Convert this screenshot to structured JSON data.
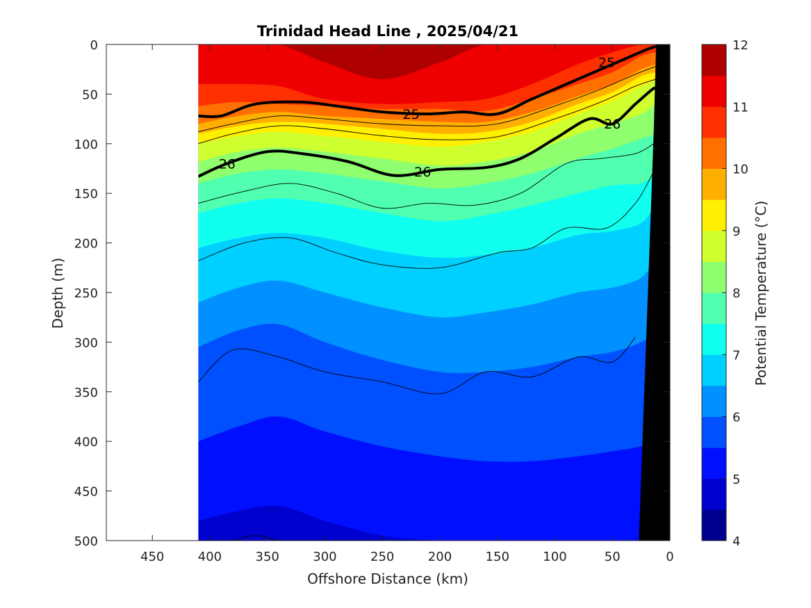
{
  "chart_data": {
    "type": "heatmap",
    "subtype": "filled-contour-section",
    "title": "Trinidad Head Line , 2025/04/21",
    "xlabel": "Offshore Distance (km)",
    "ylabel": "Depth (m)",
    "colorbar_label": "Potential Temperature (°C)",
    "x_reversed": true,
    "y_reversed": true,
    "xlim": [
      0,
      490
    ],
    "ylim": [
      0,
      500
    ],
    "xticks": [
      450,
      400,
      350,
      300,
      250,
      200,
      150,
      100,
      50,
      0
    ],
    "yticks": [
      0,
      50,
      100,
      150,
      200,
      250,
      300,
      350,
      400,
      450,
      500
    ],
    "colorbar": {
      "min": 4,
      "max": 12,
      "ticks": [
        4,
        5,
        6,
        7,
        8,
        9,
        10,
        11,
        12
      ],
      "levels": [
        4,
        4.5,
        5,
        5.5,
        6,
        6.5,
        7,
        7.5,
        8,
        8.5,
        9,
        9.5,
        10,
        10.5,
        11,
        11.5,
        12
      ],
      "colors": [
        "#00008f",
        "#0000cf",
        "#0010ff",
        "#0050ff",
        "#0090ff",
        "#00d0ff",
        "#10ffef",
        "#50ffaf",
        "#90ff6f",
        "#d0ff2f",
        "#ffef00",
        "#ffaf00",
        "#ff7000",
        "#ff3000",
        "#ef0000",
        "#af0000"
      ]
    },
    "data_range_km": [
      12,
      410
    ],
    "bathymetry_km_at_depth": [
      [
        12,
        0
      ],
      [
        14,
        85
      ],
      [
        27,
        500
      ]
    ],
    "temperature_surfaces": [
      {
        "t": 11.5,
        "depth": [
          0,
          0,
          0,
          18,
          35,
          18,
          0,
          0,
          0,
          0,
          0,
          0
        ]
      },
      {
        "t": 11.0,
        "depth": [
          40,
          40,
          42,
          55,
          60,
          58,
          55,
          40,
          20,
          8,
          0,
          0
        ]
      },
      {
        "t": 10.5,
        "depth": [
          62,
          58,
          60,
          62,
          65,
          65,
          67,
          55,
          40,
          28,
          12,
          8
        ]
      },
      {
        "t": 10.0,
        "depth": [
          80,
          72,
          68,
          72,
          75,
          78,
          78,
          68,
          52,
          40,
          25,
          20
        ]
      },
      {
        "t": 9.5,
        "depth": [
          90,
          82,
          78,
          80,
          85,
          90,
          88,
          78,
          60,
          48,
          32,
          28
        ]
      },
      {
        "t": 9.0,
        "depth": [
          100,
          92,
          88,
          92,
          98,
          103,
          98,
          88,
          70,
          57,
          42,
          36
        ]
      },
      {
        "t": 8.5,
        "depth": [
          118,
          108,
          104,
          108,
          115,
          122,
          118,
          108,
          90,
          80,
          70,
          60
        ]
      },
      {
        "t": 8.0,
        "depth": [
          140,
          130,
          126,
          130,
          138,
          145,
          140,
          130,
          115,
          105,
          95,
          90
        ]
      },
      {
        "t": 7.5,
        "depth": [
          170,
          160,
          155,
          160,
          170,
          178,
          172,
          162,
          150,
          142,
          140,
          130
        ]
      },
      {
        "t": 7.0,
        "depth": [
          205,
          195,
          190,
          195,
          208,
          215,
          212,
          205,
          192,
          188,
          180,
          160
        ]
      },
      {
        "t": 6.5,
        "depth": [
          260,
          245,
          238,
          250,
          265,
          275,
          270,
          262,
          250,
          245,
          235,
          215
        ]
      },
      {
        "t": 6.0,
        "depth": [
          305,
          288,
          282,
          300,
          318,
          330,
          330,
          325,
          315,
          310,
          300,
          290
        ]
      },
      {
        "t": 5.5,
        "depth": [
          400,
          385,
          375,
          390,
          405,
          415,
          420,
          420,
          415,
          410,
          405,
          400
        ]
      },
      {
        "t": 5.0,
        "depth": [
          480,
          470,
          465,
          480,
          495,
          500,
          500,
          500,
          500,
          500,
          500,
          500
        ]
      }
    ],
    "surface_x_km": [
      410,
      375,
      340,
      300,
      250,
      200,
      160,
      120,
      80,
      50,
      25,
      12
    ],
    "sigma_contours": [
      {
        "level": "25",
        "x": [
          410,
          390,
          360,
          320,
          290,
          250,
          210,
          180,
          150,
          120,
          90,
          60,
          40,
          20,
          12
        ],
        "depth": [
          72,
          72,
          60,
          58,
          62,
          68,
          70,
          68,
          70,
          55,
          40,
          25,
          15,
          5,
          2
        ],
        "labels": [
          {
            "x": 225,
            "depth": 70
          },
          {
            "x": 55,
            "depth": 18
          }
        ]
      },
      {
        "level": "26",
        "x": [
          410,
          385,
          350,
          320,
          280,
          240,
          200,
          160,
          130,
          100,
          70,
          50,
          30,
          15,
          12
        ],
        "depth": [
          133,
          120,
          108,
          110,
          118,
          132,
          126,
          124,
          115,
          95,
          75,
          80,
          60,
          45,
          45
        ],
        "labels": [
          {
            "x": 385,
            "depth": 120
          },
          {
            "x": 215,
            "depth": 128
          },
          {
            "x": 50,
            "depth": 80
          }
        ]
      }
    ],
    "thin_contours": [
      {
        "x": [
          410,
          380,
          340,
          300,
          250,
          200,
          150,
          100,
          60,
          30,
          12
        ],
        "depth": [
          88,
          80,
          72,
          75,
          80,
          82,
          80,
          62,
          45,
          30,
          22
        ]
      },
      {
        "x": [
          410,
          380,
          340,
          300,
          250,
          200,
          150,
          100,
          60,
          30,
          12
        ],
        "depth": [
          100,
          90,
          82,
          85,
          92,
          96,
          93,
          75,
          58,
          42,
          35
        ]
      },
      {
        "x": [
          410,
          370,
          330,
          290,
          250,
          210,
          170,
          130,
          90,
          60,
          30,
          14
        ],
        "depth": [
          160,
          148,
          140,
          150,
          165,
          160,
          162,
          150,
          120,
          115,
          110,
          100
        ]
      },
      {
        "x": [
          410,
          370,
          330,
          290,
          250,
          200,
          150,
          120,
          90,
          55,
          30,
          15
        ],
        "depth": [
          218,
          200,
          195,
          210,
          222,
          225,
          210,
          205,
          185,
          185,
          160,
          130
        ]
      },
      {
        "x": [
          410,
          380,
          340,
          300,
          250,
          200,
          160,
          120,
          80,
          50,
          30
        ],
        "depth": [
          340,
          308,
          315,
          330,
          340,
          352,
          330,
          335,
          315,
          320,
          295
        ]
      },
      {
        "x": [
          380,
          360,
          340
        ],
        "depth": [
          500,
          495,
          500
        ]
      }
    ]
  }
}
